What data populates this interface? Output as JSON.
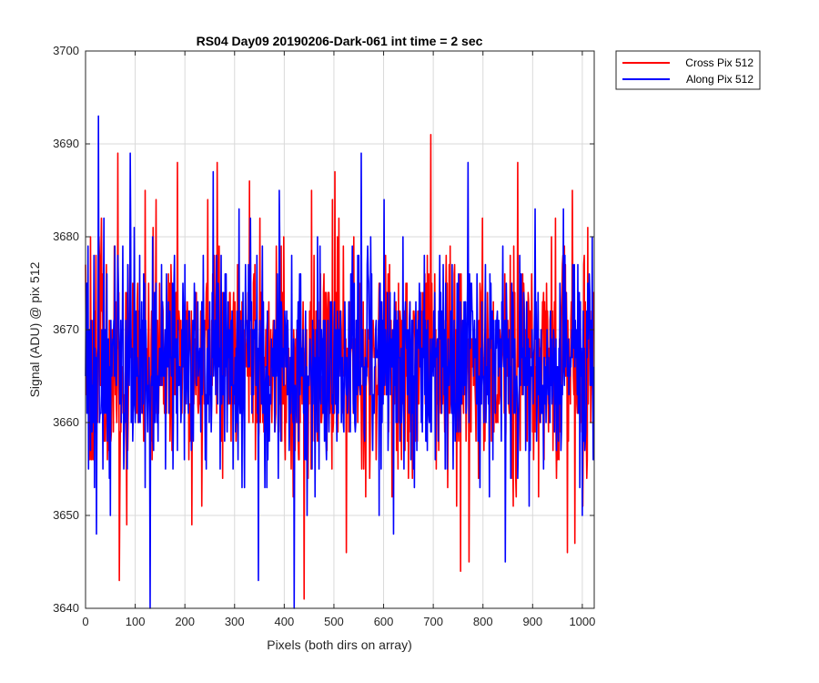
{
  "chart_data": {
    "type": "line",
    "title": "RS04 Day09 20190206-Dark-061 int time = 2 sec",
    "xlabel": "Pixels (both dirs on array)",
    "ylabel": "Signal (ADU) @ pix 512",
    "xlim": [
      0,
      1024
    ],
    "ylim": [
      3640,
      3700
    ],
    "xticks": [
      0,
      100,
      200,
      300,
      400,
      500,
      600,
      700,
      800,
      900,
      1000
    ],
    "yticks": [
      3640,
      3650,
      3660,
      3670,
      3680,
      3690,
      3700
    ],
    "grid": true,
    "legend_position": "outside-top-right",
    "series": [
      {
        "name": "Cross Pix 512",
        "color": "#ff0000",
        "noise": {
          "points": 1024,
          "mean": 3666.5,
          "std": 6.0,
          "min": 3641,
          "max": 3691
        },
        "extremes": [
          [
            7,
            3658
          ],
          [
            27,
            3680
          ],
          [
            65,
            3689
          ],
          [
            68,
            3643
          ],
          [
            83,
            3649
          ],
          [
            120,
            3685
          ],
          [
            185,
            3688
          ],
          [
            265,
            3688
          ],
          [
            330,
            3686
          ],
          [
            440,
            3641
          ],
          [
            455,
            3685
          ],
          [
            510,
            3682
          ],
          [
            525,
            3646
          ],
          [
            695,
            3691
          ],
          [
            755,
            3644
          ],
          [
            772,
            3645
          ],
          [
            870,
            3688
          ],
          [
            970,
            3646
          ],
          [
            980,
            3685
          ],
          [
            985,
            3647
          ],
          [
            1010,
            3656
          ]
        ]
      },
      {
        "name": "Along Pix 512",
        "color": "#0000ff",
        "noise": {
          "points": 1024,
          "mean": 3666.5,
          "std": 6.0,
          "min": 3640,
          "max": 3693
        },
        "extremes": [
          [
            5,
            3679
          ],
          [
            18,
            3653
          ],
          [
            22,
            3648
          ],
          [
            26,
            3693
          ],
          [
            50,
            3650
          ],
          [
            90,
            3689
          ],
          [
            130,
            3640
          ],
          [
            145,
            3665
          ],
          [
            348,
            3643
          ],
          [
            390,
            3685
          ],
          [
            420,
            3640
          ],
          [
            555,
            3689
          ],
          [
            620,
            3648
          ],
          [
            770,
            3688
          ],
          [
            845,
            3645
          ],
          [
            965,
            3678
          ],
          [
            1000,
            3650
          ],
          [
            1020,
            3680
          ]
        ]
      }
    ]
  }
}
